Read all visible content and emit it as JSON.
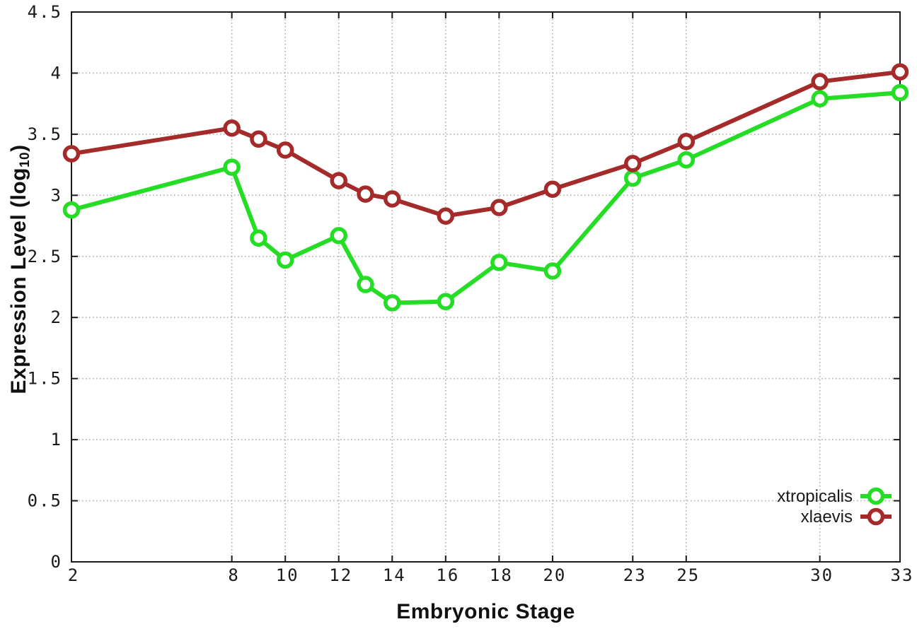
{
  "chart_data": {
    "type": "line",
    "title": "",
    "xlabel": "Embryonic Stage",
    "ylabel": "Expression Level (log10)",
    "ylabel_main": "Expression Level (log",
    "ylabel_sub": "10",
    "ylabel_close": ")",
    "x": [
      2,
      8,
      9,
      10,
      12,
      13,
      14,
      16,
      18,
      20,
      23,
      25,
      30,
      33
    ],
    "series": [
      {
        "name": "xtropicalis",
        "color": "#25dd25",
        "values": [
          2.88,
          3.23,
          2.65,
          2.47,
          2.67,
          2.27,
          2.12,
          2.13,
          2.45,
          2.38,
          3.14,
          3.29,
          3.79,
          3.84
        ]
      },
      {
        "name": "xlaevis",
        "color": "#a52a2a",
        "values": [
          3.34,
          3.55,
          3.46,
          3.37,
          3.12,
          3.01,
          2.97,
          2.83,
          2.9,
          3.05,
          3.26,
          3.44,
          3.93,
          4.01
        ]
      }
    ],
    "xticks": [
      "2",
      "8",
      "10",
      "12",
      "14",
      "16",
      "18",
      "20",
      "23",
      "25",
      "30",
      "33"
    ],
    "yticks": [
      "0",
      "0.5",
      "1",
      "1.5",
      "2",
      "2.5",
      "3",
      "3.5",
      "4",
      "4.5"
    ],
    "xlim": [
      2,
      33
    ],
    "ylim": [
      0,
      4.5
    ],
    "grid": true,
    "legend_position": "bottom-right",
    "colors": {
      "frame": "#1a1a1a",
      "grid": "#b0b0b0",
      "tick_label": "#1a1a1a",
      "background": "#ffffff"
    }
  }
}
